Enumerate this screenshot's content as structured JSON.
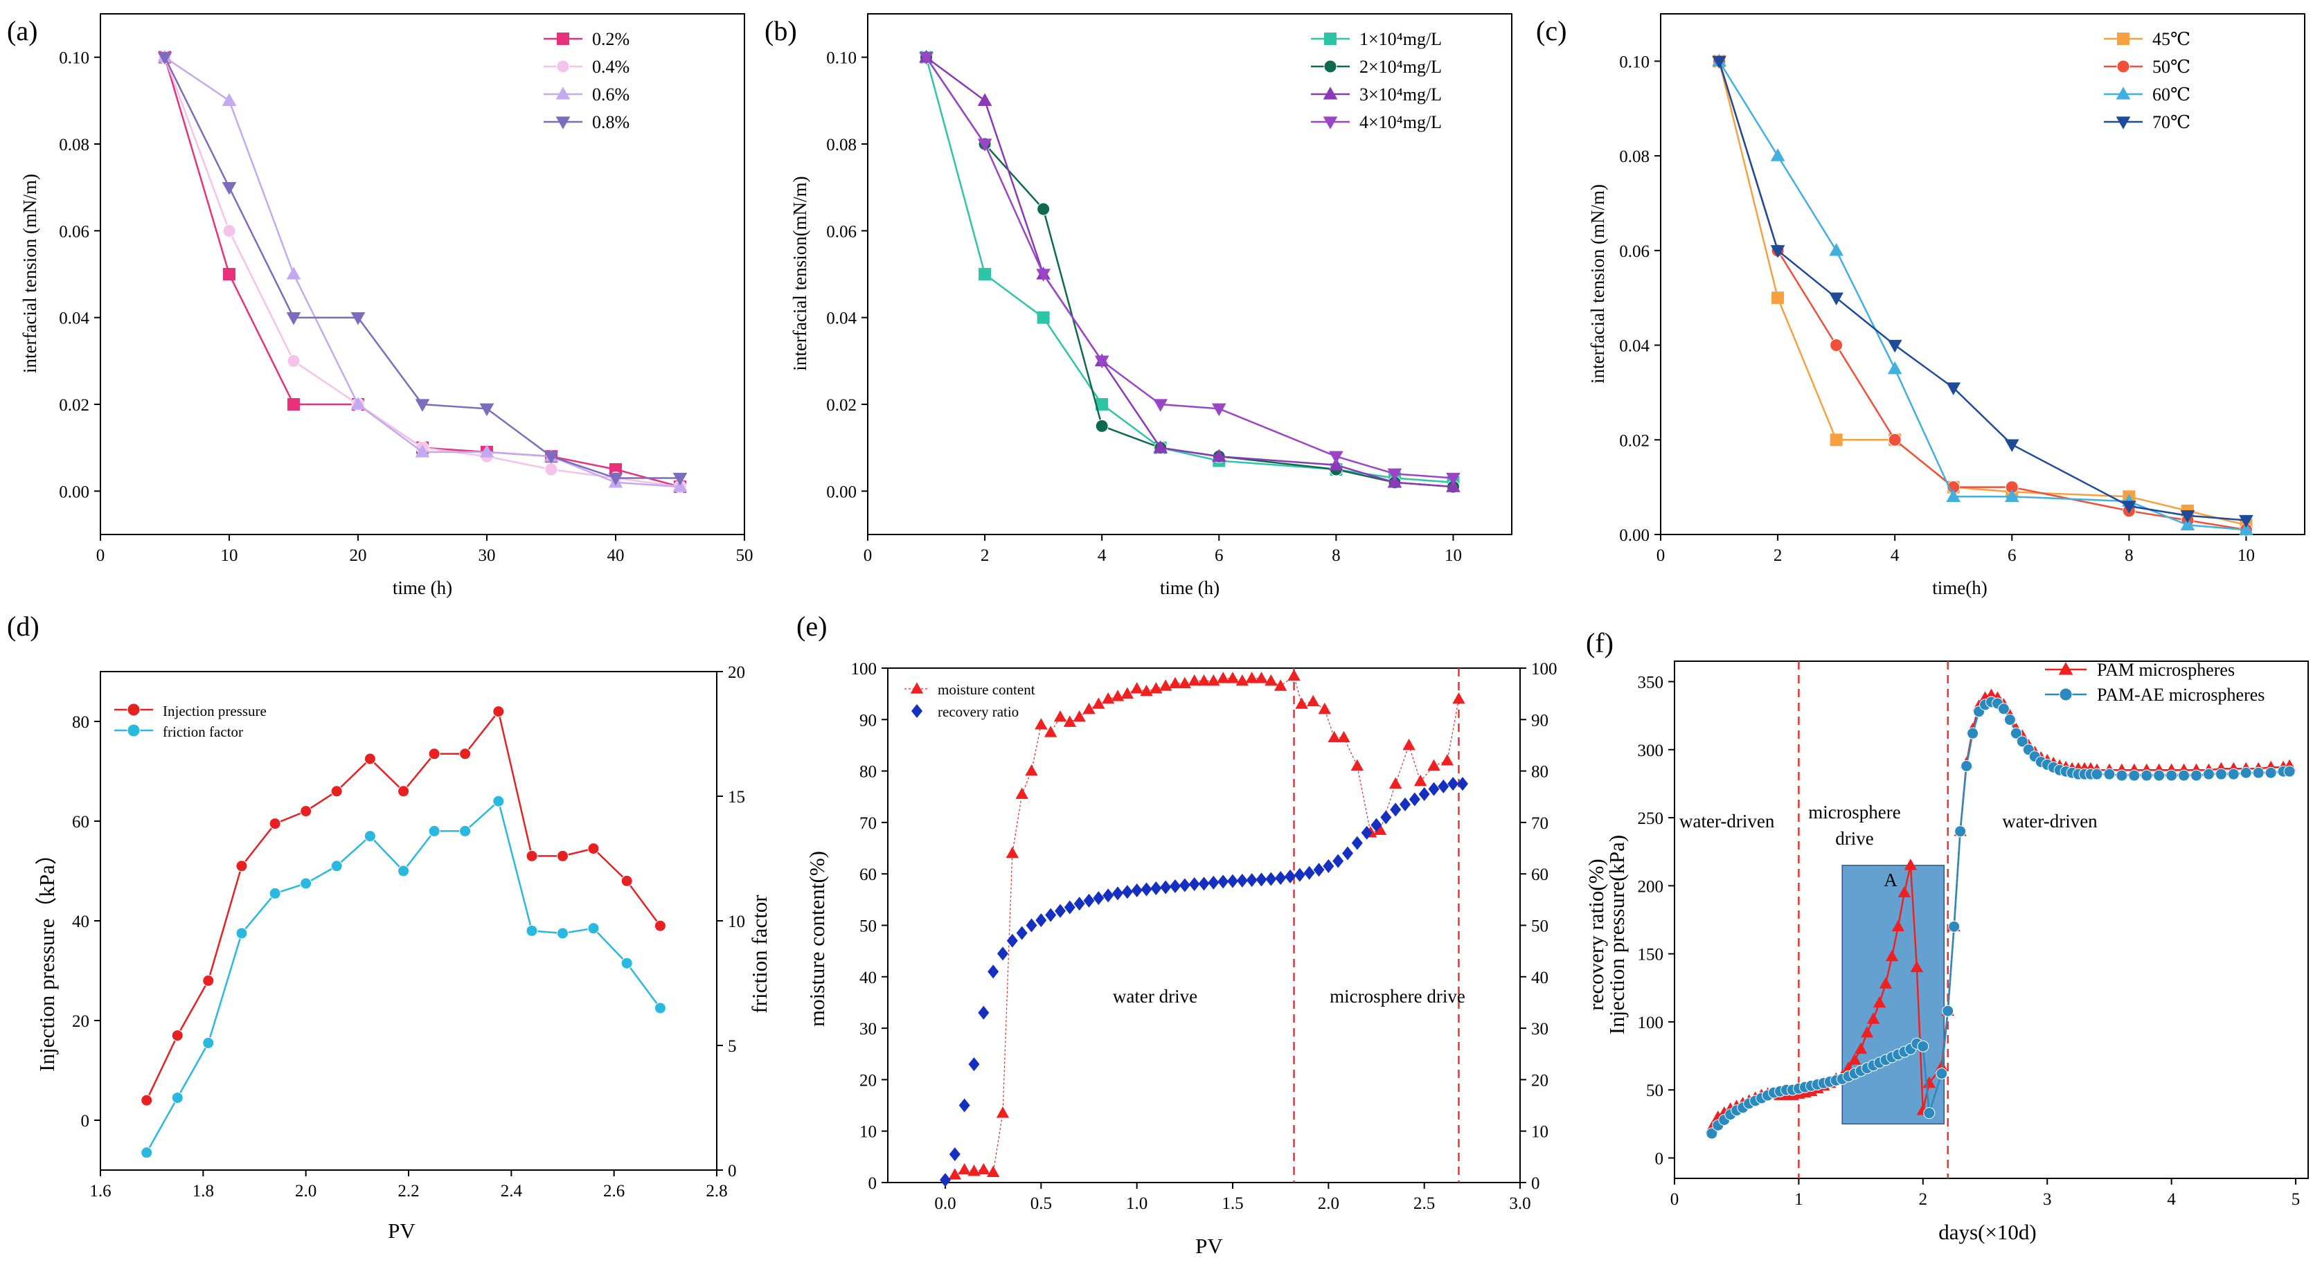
{
  "colors": {
    "conc_02": "#e8317a",
    "conc_04": "#f5c3ea",
    "conc_06": "#c3aaf0",
    "conc_08": "#7d6bc0",
    "s1e4": "#2ec4a6",
    "s2e4": "#0e6a4e",
    "s3e4": "#8a3ab8",
    "s4e4": "#9a45c8",
    "t45": "#f6a040",
    "t50": "#f0503a",
    "t60": "#40b0e0",
    "t70": "#1e4a9a",
    "inj": "#e82020",
    "fric": "#28b8e0",
    "moist": "#f02020",
    "recov": "#1530c0",
    "pam": "#f02020",
    "pamae": "#2a8ac0",
    "box": "#4a90c8",
    "vline": "#f03030"
  },
  "chart_data": [
    {
      "panel": "(a)",
      "type": "line",
      "xlabel": "time (h)",
      "ylabel": "interfacial tension (mN/m)",
      "xlim": [
        0,
        50
      ],
      "ylim": [
        -0.01,
        0.11
      ],
      "xticks": [
        "0",
        "10",
        "20",
        "30",
        "40",
        "50"
      ],
      "yticks": [
        "0.00",
        "0.02",
        "0.04",
        "0.06",
        "0.08",
        "0.10"
      ],
      "legend": "top-right",
      "x": [
        5,
        10,
        15,
        20,
        25,
        30,
        35,
        40,
        45
      ],
      "series": [
        {
          "name": "0.2%",
          "marker": "square",
          "color": "#e8317a",
          "values": [
            0.1,
            0.05,
            0.02,
            0.02,
            0.01,
            0.009,
            0.008,
            0.005,
            0.001
          ]
        },
        {
          "name": "0.4%",
          "marker": "circle",
          "color": "#f5c3ea",
          "values": [
            0.1,
            0.06,
            0.03,
            0.02,
            0.01,
            0.008,
            0.005,
            0.003,
            0.001
          ]
        },
        {
          "name": "0.6%",
          "marker": "triangle-up",
          "color": "#c3aaf0",
          "values": [
            0.1,
            0.09,
            0.05,
            0.02,
            0.009,
            0.009,
            0.008,
            0.002,
            0.001
          ]
        },
        {
          "name": "0.8%",
          "marker": "triangle-down",
          "color": "#7d6bc0",
          "values": [
            0.1,
            0.07,
            0.04,
            0.04,
            0.02,
            0.019,
            0.008,
            0.003,
            0.003
          ]
        }
      ]
    },
    {
      "panel": "(b)",
      "type": "line",
      "xlabel": "time (h)",
      "ylabel": "interfacial tension(mN/m)",
      "xlim": [
        0,
        11
      ],
      "ylim": [
        -0.01,
        0.11
      ],
      "xticks": [
        "0",
        "2",
        "4",
        "6",
        "8",
        "10"
      ],
      "yticks": [
        "0.00",
        "0.02",
        "0.04",
        "0.06",
        "0.08",
        "0.10"
      ],
      "legend": "top-right",
      "x": [
        1,
        2,
        3,
        4,
        5,
        6,
        8,
        9,
        10
      ],
      "series": [
        {
          "name": "1×10⁴mg/L",
          "marker": "square",
          "color": "#2ec4a6",
          "values": [
            0.1,
            0.05,
            0.04,
            0.02,
            0.01,
            0.007,
            0.005,
            0.003,
            0.002
          ]
        },
        {
          "name": "2×10⁴mg/L",
          "marker": "circle",
          "color": "#0e6a4e",
          "values": [
            0.1,
            0.08,
            0.065,
            0.015,
            0.01,
            0.008,
            0.005,
            0.002,
            0.001
          ]
        },
        {
          "name": "3×10⁴mg/L",
          "marker": "triangle-up",
          "color": "#8a3ab8",
          "values": [
            0.1,
            0.09,
            0.05,
            0.03,
            0.01,
            0.008,
            0.006,
            0.002,
            0.001
          ]
        },
        {
          "name": "4×10⁴mg/L",
          "marker": "triangle-down",
          "color": "#9a45c8",
          "values": [
            0.1,
            0.08,
            0.05,
            0.03,
            0.02,
            0.019,
            0.008,
            0.004,
            0.003
          ]
        }
      ]
    },
    {
      "panel": "(c)",
      "type": "line",
      "xlabel": "time(h)",
      "ylabel": "interfacial tension (mN/m)",
      "xlim": [
        0,
        11
      ],
      "ylim": [
        0,
        0.11
      ],
      "xticks": [
        "0",
        "2",
        "4",
        "6",
        "8",
        "10"
      ],
      "yticks": [
        "0.00",
        "0.02",
        "0.04",
        "0.06",
        "0.08",
        "0.10"
      ],
      "legend": "top-right",
      "x": [
        1,
        2,
        3,
        4,
        5,
        6,
        8,
        9,
        10
      ],
      "series": [
        {
          "name": "45℃",
          "marker": "square",
          "color": "#f6a040",
          "values": [
            0.1,
            0.05,
            0.02,
            0.02,
            0.01,
            0.009,
            0.008,
            0.005,
            0.002
          ]
        },
        {
          "name": "50℃",
          "marker": "circle",
          "color": "#f0503a",
          "values": [
            0.1,
            0.06,
            0.04,
            0.02,
            0.01,
            0.01,
            0.005,
            0.003,
            0.001
          ]
        },
        {
          "name": "60℃",
          "marker": "triangle-up",
          "color": "#40b0e0",
          "values": [
            0.1,
            0.08,
            0.06,
            0.035,
            0.008,
            0.008,
            0.007,
            0.002,
            0.001
          ]
        },
        {
          "name": "70℃",
          "marker": "triangle-down",
          "color": "#1e4a9a",
          "values": [
            0.1,
            0.06,
            0.05,
            0.04,
            0.031,
            0.019,
            0.006,
            0.004,
            0.003
          ]
        }
      ]
    },
    {
      "panel": "(d)",
      "type": "line",
      "xlabel": "PV",
      "ylabel": "Injection pressure（kPa）",
      "y2label": "friction factor",
      "xlim": [
        1.6,
        2.8
      ],
      "ylim": [
        -10,
        90
      ],
      "y2lim": [
        0,
        20
      ],
      "xticks": [
        "1.6",
        "1.8",
        "2.0",
        "2.2",
        "2.4",
        "2.6",
        "2.8"
      ],
      "yticks": [
        "0",
        "20",
        "40",
        "60",
        "80"
      ],
      "y2ticks": [
        "0",
        "5",
        "10",
        "15",
        "20"
      ],
      "legend": "top-left",
      "x": [
        1.69,
        1.75,
        1.81,
        1.875,
        1.94,
        2.0,
        2.06,
        2.125,
        2.19,
        2.25,
        2.31,
        2.375,
        2.44,
        2.5,
        2.56,
        2.625,
        2.69
      ],
      "series": [
        {
          "name": "Injection pressure",
          "axis": "left",
          "marker": "circle",
          "color": "#e82020",
          "values": [
            4,
            17,
            28,
            51,
            59.5,
            62,
            66,
            72.5,
            66,
            73.5,
            73.5,
            82,
            53,
            53,
            54.5,
            48,
            39
          ]
        },
        {
          "name": "friction factor",
          "axis": "right",
          "marker": "circle",
          "color": "#28b8e0",
          "values": [
            0.7,
            2.9,
            5.1,
            9.5,
            11.1,
            11.5,
            12.2,
            13.4,
            12.0,
            13.6,
            13.6,
            14.8,
            9.6,
            9.5,
            9.7,
            8.3,
            6.5
          ]
        }
      ]
    },
    {
      "panel": "(e)",
      "type": "scatter",
      "xlabel": "PV",
      "ylabel": "moisture content(%)",
      "y2label": "recovery ratio(%)",
      "xlim": [
        -0.3,
        3.0
      ],
      "ylim": [
        0,
        100
      ],
      "y2lim": [
        0,
        100
      ],
      "xticks": [
        "0.0",
        "0.5",
        "1.0",
        "1.5",
        "2.0",
        "2.5",
        "3.0"
      ],
      "yticks": [
        "0",
        "10",
        "20",
        "30",
        "40",
        "50",
        "60",
        "70",
        "80",
        "90",
        "100"
      ],
      "y2ticks": [
        "0",
        "10",
        "20",
        "30",
        "40",
        "50",
        "60",
        "70",
        "80",
        "90",
        "100"
      ],
      "legend": "top-left",
      "annotations": [
        "water drive",
        "microsphere drive"
      ],
      "vlines": [
        1.82,
        2.68
      ],
      "series": [
        {
          "name": "moisture content",
          "axis": "left",
          "marker": "triangle-up",
          "color": "#f02020",
          "x": [
            0.05,
            0.1,
            0.15,
            0.2,
            0.25,
            0.3,
            0.35,
            0.4,
            0.45,
            0.5,
            0.55,
            0.6,
            0.65,
            0.7,
            0.75,
            0.8,
            0.85,
            0.9,
            0.95,
            1.0,
            1.05,
            1.1,
            1.15,
            1.2,
            1.25,
            1.3,
            1.35,
            1.4,
            1.45,
            1.5,
            1.55,
            1.6,
            1.65,
            1.7,
            1.75,
            1.82,
            1.86,
            1.92,
            1.98,
            2.03,
            2.08,
            2.15,
            2.22,
            2.27,
            2.35,
            2.42,
            2.48,
            2.55,
            2.62,
            2.68
          ],
          "values": [
            1.5,
            2.5,
            2.2,
            2.5,
            2.0,
            13.5,
            64,
            75.5,
            80,
            89,
            87.5,
            90.5,
            89.5,
            90.5,
            92,
            93,
            94,
            94.5,
            95,
            96,
            95.5,
            96,
            96.5,
            97,
            97,
            97.5,
            97.5,
            97.5,
            98,
            98,
            97.5,
            98,
            98,
            97.5,
            96.5,
            98.5,
            93,
            93.5,
            92,
            86.5,
            86.5,
            81,
            68,
            68.5,
            77.5,
            85,
            78,
            81,
            82,
            94
          ]
        },
        {
          "name": "recovery ratio",
          "axis": "right",
          "marker": "diamond",
          "color": "#1530c0",
          "x": [
            0.0,
            0.05,
            0.1,
            0.15,
            0.2,
            0.25,
            0.3,
            0.35,
            0.4,
            0.45,
            0.5,
            0.55,
            0.6,
            0.65,
            0.7,
            0.75,
            0.8,
            0.85,
            0.9,
            0.95,
            1.0,
            1.05,
            1.1,
            1.15,
            1.2,
            1.25,
            1.3,
            1.35,
            1.4,
            1.45,
            1.5,
            1.55,
            1.6,
            1.65,
            1.7,
            1.75,
            1.8,
            1.85,
            1.9,
            1.95,
            2.0,
            2.05,
            2.1,
            2.15,
            2.2,
            2.25,
            2.3,
            2.35,
            2.4,
            2.45,
            2.5,
            2.55,
            2.6,
            2.65,
            2.7
          ],
          "values": [
            0.5,
            5.5,
            15,
            23,
            33,
            41,
            44.5,
            47,
            48.5,
            50,
            51,
            52,
            52.8,
            53.5,
            54.2,
            54.8,
            55.3,
            55.8,
            56.2,
            56.5,
            56.8,
            57,
            57.2,
            57.4,
            57.6,
            57.8,
            58,
            58.1,
            58.3,
            58.5,
            58.6,
            58.7,
            58.8,
            58.9,
            59,
            59.2,
            59.5,
            59.8,
            60.2,
            60.8,
            61.5,
            62.5,
            64,
            66,
            68,
            69.5,
            71,
            72.5,
            73.5,
            74.5,
            75.5,
            76.5,
            77,
            77.5,
            77.5
          ]
        }
      ]
    },
    {
      "panel": "(f)",
      "type": "line",
      "xlabel": "days(×10d)",
      "ylabel": "recovery ratio(%)",
      "ylabel2": "Injection pressure(kPa)",
      "xlim": [
        0,
        5.1
      ],
      "ylim": [
        -15,
        365
      ],
      "xticks": [
        "0",
        "1",
        "2",
        "3",
        "4",
        "5"
      ],
      "yticks": [
        "0",
        "50",
        "100",
        "150",
        "200",
        "250",
        "300",
        "350"
      ],
      "legend": "top-right",
      "annotations": [
        "water-driven",
        "microsphere",
        "drive",
        "water-driven",
        "A"
      ],
      "vlines": [
        1.0,
        2.2
      ],
      "shaded_region": {
        "x": [
          1.35,
          2.17
        ],
        "y": [
          25,
          215
        ]
      },
      "series": [
        {
          "name": "PAM microspheres",
          "marker": "triangle-up",
          "color": "#f02020",
          "x": [
            0.3,
            0.35,
            0.4,
            0.45,
            0.5,
            0.55,
            0.6,
            0.65,
            0.7,
            0.75,
            0.8,
            0.85,
            0.9,
            0.95,
            1.0,
            1.05,
            1.1,
            1.15,
            1.2,
            1.25,
            1.3,
            1.35,
            1.4,
            1.45,
            1.5,
            1.55,
            1.6,
            1.65,
            1.7,
            1.75,
            1.8,
            1.85,
            1.9,
            1.95,
            2.0,
            2.05,
            2.15,
            2.2,
            2.25,
            2.3,
            2.35,
            2.4,
            2.45,
            2.5,
            2.55,
            2.6,
            2.65,
            2.7,
            2.75,
            2.8,
            2.85,
            2.9,
            2.95,
            3.0,
            3.05,
            3.1,
            3.15,
            3.2,
            3.25,
            3.3,
            3.35,
            3.4,
            3.5,
            3.6,
            3.7,
            3.8,
            3.9,
            4.0,
            4.1,
            4.2,
            4.3,
            4.4,
            4.5,
            4.6,
            4.7,
            4.8,
            4.9,
            4.95
          ],
          "values": [
            22,
            30,
            33,
            36,
            38,
            40,
            42,
            44,
            46,
            47,
            47,
            46,
            46,
            46,
            47,
            48,
            49,
            51,
            53,
            55,
            58,
            60,
            66,
            72,
            80,
            92,
            102,
            114,
            128,
            148,
            170,
            195,
            215,
            140,
            35,
            55,
            67,
            108,
            170,
            240,
            290,
            315,
            332,
            338,
            340,
            338,
            333,
            325,
            315,
            310,
            303,
            298,
            294,
            292,
            290,
            288,
            287,
            286,
            286,
            286,
            286,
            285,
            285,
            285,
            285,
            285,
            285,
            285,
            285,
            285,
            285,
            286,
            286,
            286,
            286,
            287,
            287,
            288
          ]
        },
        {
          "name": "PAM-AE microspheres",
          "marker": "circle",
          "color": "#2a8ac0",
          "x": [
            0.3,
            0.35,
            0.4,
            0.45,
            0.5,
            0.55,
            0.6,
            0.65,
            0.7,
            0.75,
            0.8,
            0.85,
            0.9,
            0.95,
            1.0,
            1.05,
            1.1,
            1.15,
            1.2,
            1.25,
            1.3,
            1.35,
            1.4,
            1.45,
            1.5,
            1.55,
            1.6,
            1.65,
            1.7,
            1.75,
            1.8,
            1.85,
            1.9,
            1.95,
            2.0,
            2.05,
            2.15,
            2.2,
            2.25,
            2.3,
            2.35,
            2.4,
            2.45,
            2.5,
            2.55,
            2.6,
            2.65,
            2.7,
            2.75,
            2.8,
            2.85,
            2.9,
            2.95,
            3.0,
            3.05,
            3.1,
            3.15,
            3.2,
            3.25,
            3.3,
            3.35,
            3.4,
            3.5,
            3.6,
            3.7,
            3.8,
            3.9,
            4.0,
            4.1,
            4.2,
            4.3,
            4.4,
            4.5,
            4.6,
            4.7,
            4.8,
            4.9,
            4.95
          ],
          "values": [
            18,
            24,
            28,
            32,
            35,
            37,
            40,
            42,
            44,
            46,
            48,
            49,
            50,
            50,
            51,
            52,
            53,
            54,
            55,
            56,
            57,
            58,
            60,
            62,
            64,
            66,
            68,
            70,
            72,
            74,
            76,
            78,
            80,
            84,
            82,
            33,
            62,
            108,
            170,
            240,
            288,
            312,
            328,
            333,
            335,
            334,
            330,
            322,
            312,
            306,
            300,
            295,
            291,
            289,
            287,
            285,
            284,
            283,
            282,
            282,
            282,
            282,
            282,
            281,
            281,
            281,
            281,
            281,
            281,
            281,
            282,
            282,
            282,
            283,
            283,
            283,
            284,
            284
          ]
        }
      ]
    }
  ]
}
